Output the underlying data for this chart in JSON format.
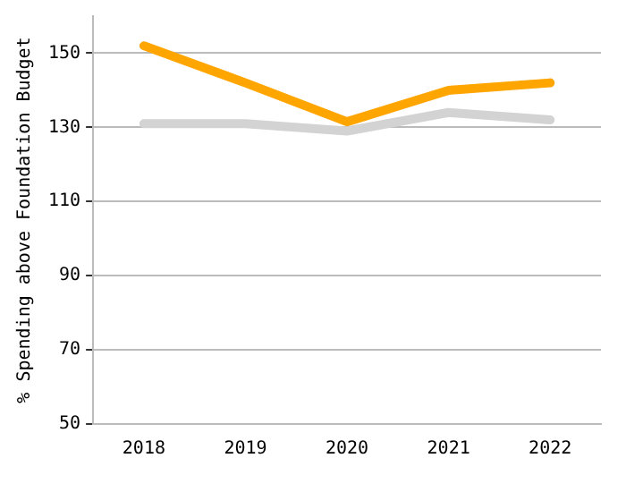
{
  "chart_data": {
    "type": "line",
    "ylabel": "% Spending above Foundation Budget",
    "categories": [
      "2018",
      "2019",
      "2020",
      "2021",
      "2022"
    ],
    "series": [
      {
        "color": "#d3d3d3",
        "values": [
          131,
          131,
          129,
          134,
          132
        ]
      },
      {
        "color": "#ffa500",
        "values": [
          152,
          142,
          131.5,
          140,
          142
        ]
      }
    ],
    "ylim": [
      50,
      160
    ],
    "yticks": [
      50,
      70,
      90,
      110,
      130,
      150
    ],
    "grid": "y",
    "legend": false,
    "marker": "none",
    "line_style": "solid"
  }
}
